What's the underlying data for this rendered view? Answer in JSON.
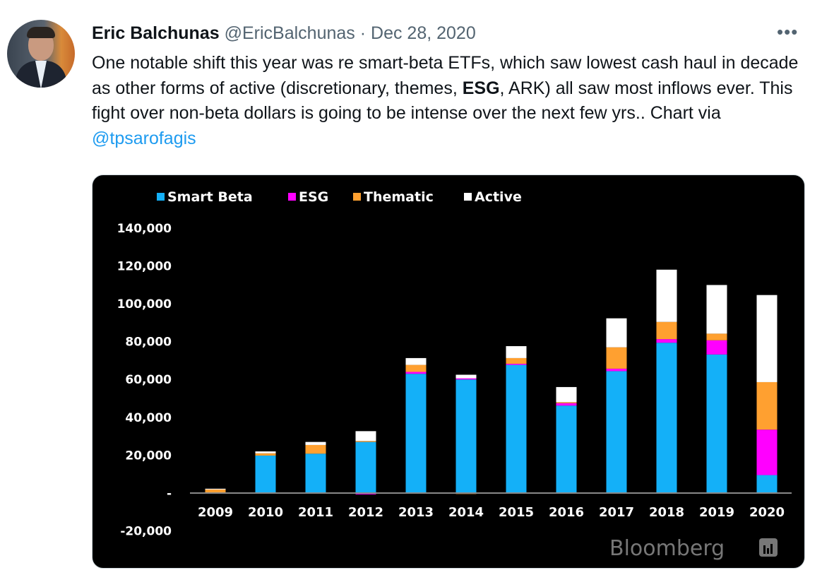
{
  "tweet": {
    "author_name": "Eric Balchunas",
    "handle": "@EricBalchunas",
    "separator": "·",
    "date": "Dec 28, 2020",
    "more_icon": "more-horizontal-icon",
    "text_part1": "One notable shift this year was re smart-beta ETFs, which saw lowest cash haul in decade as other forms of active (discretionary, themes, ",
    "text_bold": "ESG",
    "text_part2": ", ARK) all saw most inflows ever. This fight over non-beta dollars is going to be intense over the next few yrs.. Chart via ",
    "mention": "@tpsarofagis"
  },
  "chart_data": {
    "type": "bar",
    "stacked": true,
    "watermark": "Bloomberg",
    "legend_placement": "top-left",
    "categories": [
      "2009",
      "2010",
      "2011",
      "2012",
      "2013",
      "2014",
      "2015",
      "2016",
      "2017",
      "2018",
      "2019",
      "2020"
    ],
    "ylim": [
      -20000,
      140000
    ],
    "yticks": [
      {
        "value": 140000,
        "label": "140,000"
      },
      {
        "value": 120000,
        "label": "120,000"
      },
      {
        "value": 100000,
        "label": "100,000"
      },
      {
        "value": 80000,
        "label": "80,000"
      },
      {
        "value": 60000,
        "label": "60,000"
      },
      {
        "value": 40000,
        "label": "40,000"
      },
      {
        "value": 20000,
        "label": "20,000"
      },
      {
        "value": 0,
        "label": "-"
      },
      {
        "value": -20000,
        "label": "-20,000"
      }
    ],
    "grid": false,
    "series": [
      {
        "name": "Smart Beta",
        "color": "#14b0f8",
        "values": [
          0,
          19800,
          20800,
          27000,
          63000,
          60000,
          67700,
          46200,
          64400,
          79400,
          73200,
          9500
        ]
      },
      {
        "name": "ESG",
        "color": "#ff00ff",
        "values": [
          0,
          0,
          0,
          -700,
          1000,
          600,
          600,
          1300,
          1300,
          1900,
          7500,
          24000
        ]
      },
      {
        "name": "Thematic",
        "color": "#ffa030",
        "values": [
          2000,
          1200,
          4600,
          500,
          3700,
          -500,
          3000,
          500,
          11300,
          9100,
          3500,
          25100
        ]
      },
      {
        "name": "Active",
        "color": "#ffffff",
        "values": [
          300,
          1000,
          1600,
          5200,
          3600,
          1900,
          6300,
          8000,
          15300,
          27600,
          25700,
          46000
        ]
      }
    ]
  }
}
